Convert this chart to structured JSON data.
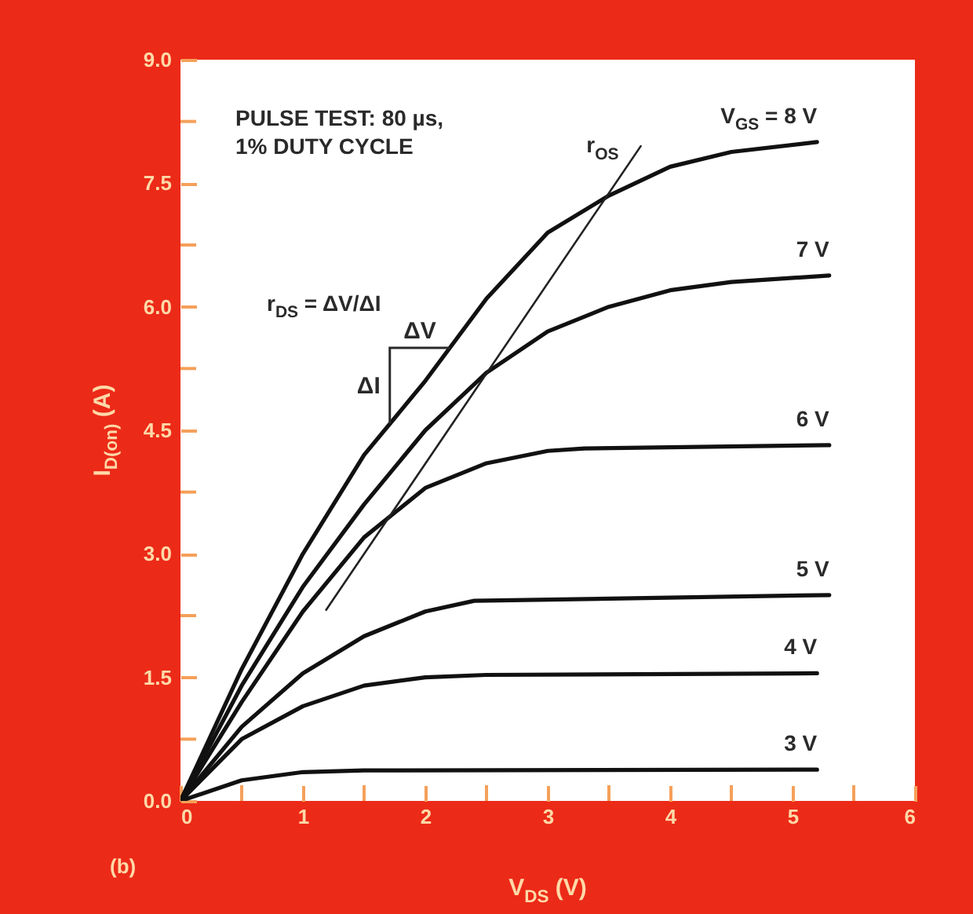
{
  "chart_data": {
    "type": "line",
    "xlabel": "V$_{DS}$ (V)",
    "ylabel": "I$_{D(on)}$ (A)",
    "xlim": [
      0,
      6
    ],
    "ylim": [
      0,
      9
    ],
    "xticks": [
      0,
      {
        "value": 0.5,
        "label": null
      },
      1,
      {
        "value": 1.5,
        "label": null
      },
      2,
      {
        "value": 2.5,
        "label": null
      },
      3,
      {
        "value": 3.5,
        "label": null
      },
      4,
      {
        "value": 4.5,
        "label": null
      },
      5,
      {
        "value": 5.5,
        "label": null
      },
      6
    ],
    "yticks": [
      {
        "value": 0,
        "label": "0.0"
      },
      {
        "value": 0.75,
        "label": null
      },
      1.5,
      {
        "value": 2.25,
        "label": null
      },
      {
        "value": 3,
        "label": "3.0"
      },
      {
        "value": 3.75,
        "label": null
      },
      4.5,
      {
        "value": 5.25,
        "label": null
      },
      {
        "value": 6,
        "label": "6.0"
      },
      {
        "value": 6.75,
        "label": null
      },
      7.5,
      {
        "value": 8.25,
        "label": null
      },
      {
        "value": 9,
        "label": "9.0"
      }
    ],
    "series": [
      {
        "name": "V$_{GS}$ = 8 V",
        "color": "#111111",
        "x": [
          0,
          0.5,
          1,
          1.5,
          2,
          2.5,
          3,
          3.5,
          4,
          4.5,
          5.2
        ],
        "values": [
          0,
          1.6,
          3.0,
          4.2,
          5.1,
          6.1,
          6.9,
          7.35,
          7.7,
          7.88,
          8.0
        ]
      },
      {
        "name": "7 V",
        "color": "#111111",
        "x": [
          0,
          0.5,
          1,
          1.5,
          2,
          2.5,
          3,
          3.5,
          4,
          4.5,
          5.3
        ],
        "values": [
          0,
          1.4,
          2.6,
          3.6,
          4.5,
          5.2,
          5.7,
          6.0,
          6.2,
          6.3,
          6.38
        ]
      },
      {
        "name": "6 V",
        "color": "#111111",
        "x": [
          0,
          0.5,
          1,
          1.5,
          2,
          2.5,
          3,
          3.3,
          5.3
        ],
        "values": [
          0,
          1.2,
          2.3,
          3.2,
          3.8,
          4.1,
          4.25,
          4.28,
          4.32
        ]
      },
      {
        "name": "5 V",
        "color": "#111111",
        "x": [
          0,
          0.5,
          1,
          1.5,
          2,
          2.4,
          5.3
        ],
        "values": [
          0,
          0.9,
          1.55,
          2.0,
          2.3,
          2.43,
          2.5
        ]
      },
      {
        "name": "4 V",
        "color": "#111111",
        "x": [
          0,
          0.5,
          1,
          1.5,
          2,
          2.5,
          5.2
        ],
        "values": [
          0,
          0.75,
          1.15,
          1.4,
          1.5,
          1.53,
          1.55
        ]
      },
      {
        "name": "3 V",
        "color": "#111111",
        "x": [
          0,
          0.5,
          1,
          1.5,
          5.2
        ],
        "values": [
          0,
          0.25,
          0.35,
          0.37,
          0.38
        ]
      },
      {
        "name": "r$_{OS}$",
        "type": "line",
        "color": "#222222",
        "x": [
          1.19,
          3.76
        ],
        "values": [
          2.32,
          7.95
        ]
      }
    ],
    "annotations": [
      "PULSE TEST: 80 µs,",
      "1% DUTY CYCLE",
      "r$_{DS}$ = ΔV/ΔI",
      {
        "text": "ΔV",
        "x": 2.2,
        "y": 5.5
      },
      {
        "text": "ΔI",
        "x": 1.71,
        "y": 4.58
      },
      "(b)"
    ]
  }
}
